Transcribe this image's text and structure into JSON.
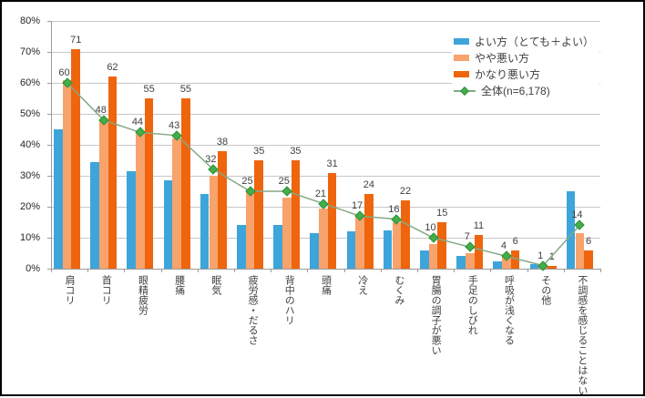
{
  "chart_data": {
    "type": "bar",
    "title": "",
    "xlabel": "",
    "ylabel": "",
    "ylim": [
      0,
      80
    ],
    "yticks": [
      "0%",
      "10%",
      "20%",
      "30%",
      "40%",
      "50%",
      "60%",
      "70%",
      "80%"
    ],
    "grid": true,
    "legend_position": "top-right",
    "categories": [
      "肩コリ",
      "首コリ",
      "眼精疲労",
      "腰痛",
      "眠気",
      "疲労感・だるさ",
      "背中のハリ",
      "頭痛",
      "冷え",
      "むくみ",
      "胃腸の調子が悪い",
      "手足のしびれ",
      "呼吸が浅くなる",
      "その他",
      "不調感を感じることはない"
    ],
    "series": [
      {
        "name": "よい方（とても＋よい）",
        "type": "bar",
        "color": "#3da5da",
        "labeled": false,
        "values": [
          45,
          34.5,
          31.5,
          28.5,
          24,
          14,
          14,
          11.5,
          12,
          12.5,
          6,
          4,
          2.5,
          1.5,
          25
        ]
      },
      {
        "name": "やや悪い方",
        "type": "bar",
        "color": "#f8a26c",
        "labeled": false,
        "values": [
          61,
          48,
          44,
          42,
          30,
          25.5,
          23,
          19.5,
          17,
          15,
          8,
          5,
          4,
          1,
          11.5
        ]
      },
      {
        "name": "かなり悪い方",
        "type": "bar",
        "color": "#ee650e",
        "labeled": true,
        "values": [
          71,
          62,
          55,
          55,
          38,
          35,
          35,
          31,
          24,
          22,
          15,
          11,
          6,
          1,
          6
        ]
      },
      {
        "name": "全体(n=6,178)",
        "type": "line",
        "line_color": "#85a985",
        "marker_color": "#44ae49",
        "marker_border": "#2e8f3b",
        "labeled": true,
        "values": [
          60,
          48,
          44,
          43,
          32,
          25,
          25,
          21,
          17,
          16,
          10,
          7,
          4,
          1,
          14
        ]
      }
    ],
    "colors": {
      "gridline": "#c8c8c8",
      "axis": "#9b9b9b",
      "label_text": "#404040",
      "tick_text": "#262626"
    }
  }
}
